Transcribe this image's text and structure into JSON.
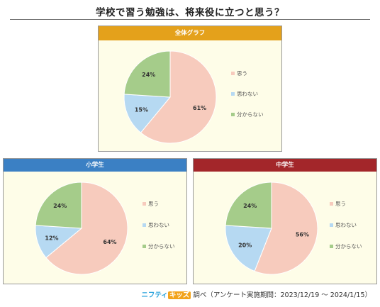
{
  "title": "学校で習う勉強は、将来役に立つと思う？",
  "footer": {
    "brand_nifty": "ニフティ",
    "brand_kids": "キッズ",
    "suffix": "調べ（アンケート実施期間：2023/12/19 ～ 2024/1/15）"
  },
  "colors": {
    "header_all": "#e4a11b",
    "header_elem": "#3b80c4",
    "header_middle": "#a3262a",
    "slice_yes": "#f7cbbd",
    "slice_no": "#b6d9f2",
    "slice_unknown": "#a5cc8a",
    "panel_bg": "#fefde8"
  },
  "chart_data": [
    {
      "type": "pie",
      "title": "全体グラフ",
      "categories": [
        "思う",
        "思わない",
        "分からない"
      ],
      "values": [
        61,
        15,
        24
      ],
      "value_labels": [
        "61%",
        "15%",
        "24%"
      ],
      "legend": "right"
    },
    {
      "type": "pie",
      "title": "小学生",
      "categories": [
        "思う",
        "思わない",
        "分からない"
      ],
      "values": [
        64,
        12,
        24
      ],
      "value_labels": [
        "64%",
        "12%",
        "24%"
      ],
      "legend": "right"
    },
    {
      "type": "pie",
      "title": "中学生",
      "categories": [
        "思う",
        "思わない",
        "分からない"
      ],
      "values": [
        56,
        20,
        24
      ],
      "value_labels": [
        "56%",
        "20%",
        "24%"
      ],
      "legend": "right"
    }
  ]
}
